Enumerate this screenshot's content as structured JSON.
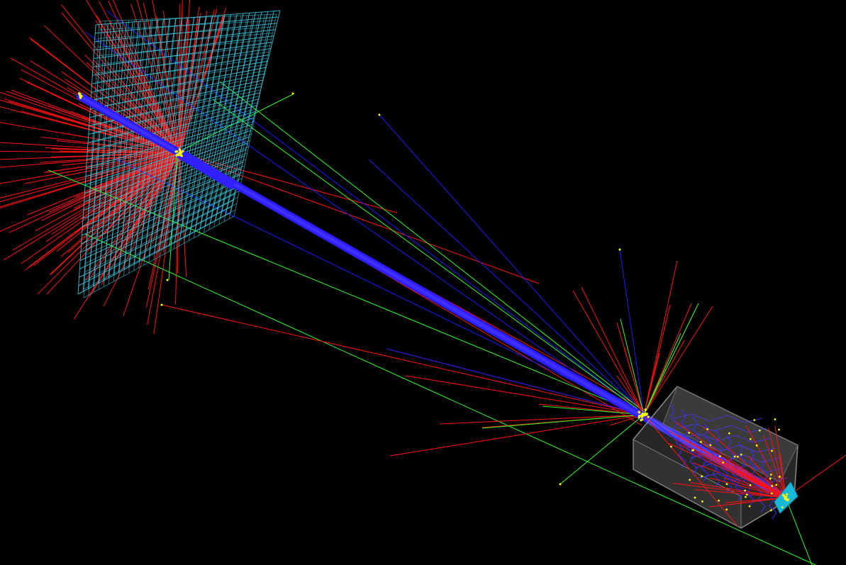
{
  "viewer": {
    "background": "#000000",
    "colors": {
      "beam": "#2a1cff",
      "negative_track": "#ff1010",
      "positive_track": "#1a1aff",
      "neutral_track": "#22ff22",
      "step_point": "#ffff00",
      "detector_wire": "#38c8e0",
      "calorimeter_box": "#8a8a8a",
      "target": "#19b8d8"
    },
    "components": [
      "pixel-plane-detector",
      "beam-line",
      "vertex",
      "calorimeter-box",
      "target-plate"
    ]
  }
}
